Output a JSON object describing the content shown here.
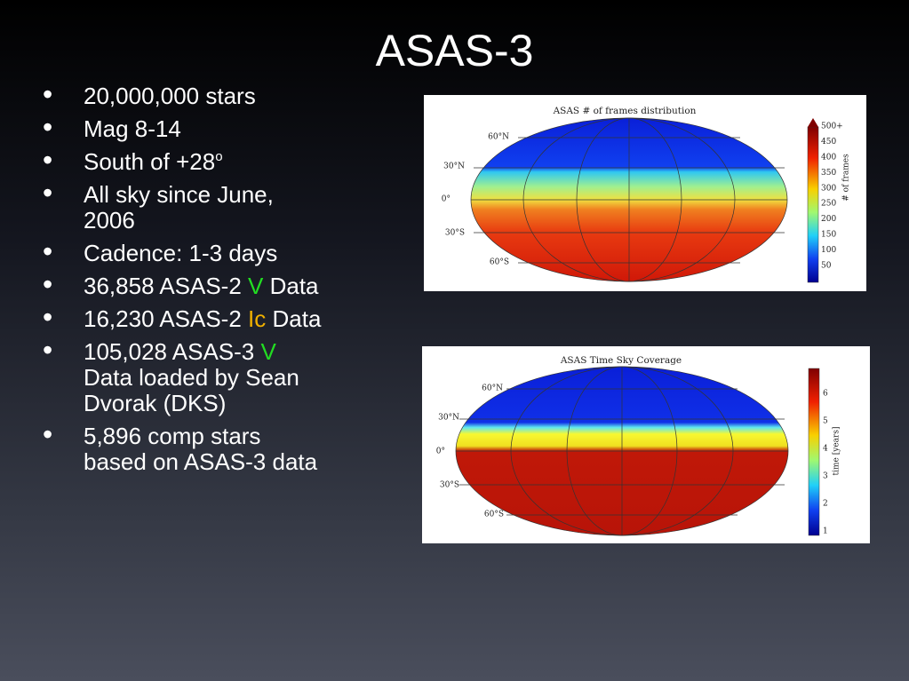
{
  "title": "ASAS-3",
  "bullets": [
    {
      "lines": [
        [
          {
            "text": "20,000,000 stars"
          }
        ]
      ]
    },
    {
      "lines": [
        [
          {
            "text": "Mag 8-14"
          }
        ]
      ]
    },
    {
      "lines": [
        [
          {
            "text": "South of +28"
          },
          {
            "text": "o",
            "sup": true
          }
        ]
      ]
    },
    {
      "lines": [
        [
          {
            "text": "All sky since June,"
          }
        ],
        [
          {
            "text": "2006"
          }
        ]
      ]
    },
    {
      "lines": [
        [
          {
            "text": "Cadence: 1-3 days"
          }
        ]
      ]
    },
    {
      "lines": [
        [
          {
            "text": "36,858 ASAS-2 "
          },
          {
            "text": "V",
            "color": "#22dd22"
          },
          {
            "text": " Data"
          }
        ]
      ]
    },
    {
      "lines": [
        [
          {
            "text": "16,230 ASAS-2 "
          },
          {
            "text": "Ic",
            "color": "#f0b000"
          },
          {
            "text": " Data"
          }
        ]
      ]
    },
    {
      "lines": [
        [
          {
            "text": "105,028 ASAS-3 "
          },
          {
            "text": "V",
            "color": "#22dd22"
          }
        ],
        [
          {
            "text": "Data loaded by Sean"
          }
        ],
        [
          {
            "text": "Dvorak (DKS)"
          }
        ]
      ]
    },
    {
      "lines": [
        [
          {
            "text": "5,896 comp stars"
          }
        ],
        [
          {
            "text": "based on ASAS-3 data"
          }
        ]
      ]
    }
  ],
  "figures": [
    {
      "title": "ASAS # of frames distribution",
      "latitudes": [
        "60°N",
        "30°N",
        "0°",
        "30°S",
        "60°S"
      ],
      "colorbar_ticks": [
        "500+",
        "450",
        "400",
        "350",
        "300",
        "250",
        "200",
        "150",
        "100",
        "50"
      ],
      "colorbar_label": "# of frames"
    },
    {
      "title": "ASAS Time Sky Coverage",
      "latitudes": [
        "60°N",
        "30°N",
        "0°",
        "30°S",
        "60°S"
      ],
      "colorbar_ticks": [
        "6",
        "5",
        "4",
        "3",
        "2",
        "1"
      ],
      "colorbar_label": "time [years]"
    }
  ]
}
